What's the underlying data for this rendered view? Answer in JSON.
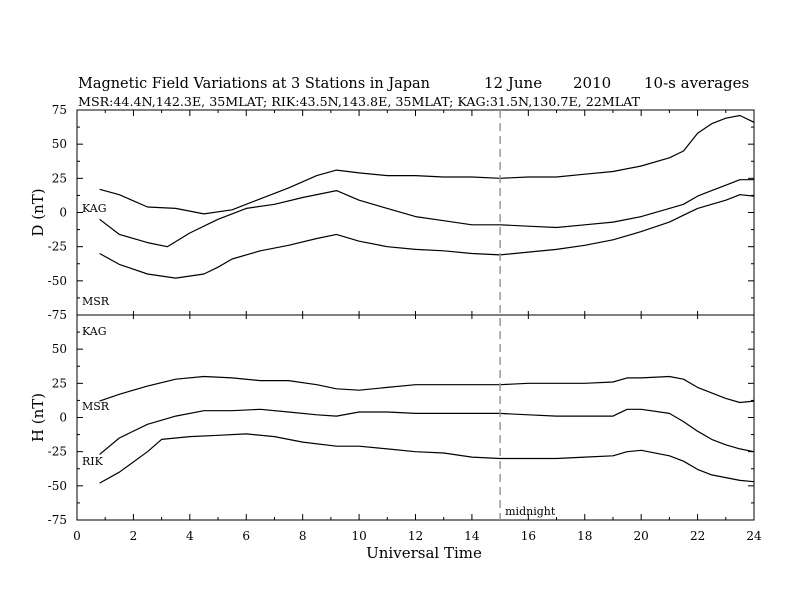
{
  "chart_data": {
    "type": "line",
    "title": "Magnetic Field Variations at 3 Stations in Japan",
    "title_date": "12 June",
    "title_year": "2010",
    "title_note": "10-s averages",
    "subtitle": "MSR:44.4N,142.3E, 35MLAT;  RIK:43.5N,143.8E, 35MLAT;  KAG:31.5N,130.7E, 22MLAT",
    "xlabel": "Universal Time",
    "xlim": [
      0,
      24
    ],
    "x_ticks": [
      "0",
      "2",
      "4",
      "6",
      "8",
      "10",
      "12",
      "14",
      "16",
      "18",
      "20",
      "22",
      "24"
    ],
    "midnight_marker": {
      "x": 15,
      "label": "midnight",
      "style": "dashed",
      "color": "#999999"
    },
    "line_color": "#000000",
    "panels": [
      {
        "ylabel": "D (nT)",
        "ylim": [
          -75,
          75
        ],
        "y_ticks": [
          "75",
          "50",
          "25",
          "0",
          "-25",
          "-50",
          "-75"
        ],
        "station_labels": [
          "KAG",
          "MSR"
        ],
        "series": [
          {
            "name": "KAG",
            "x": [
              0.8,
              1.5,
              2.5,
              3.5,
              4.5,
              5.5,
              6.5,
              7.5,
              8.5,
              9.2,
              10,
              11,
              12,
              13,
              14,
              15,
              16,
              17,
              18,
              19,
              20,
              21,
              21.5,
              22,
              22.5,
              23,
              23.5,
              24
            ],
            "y": [
              17,
              13,
              4,
              3,
              -1,
              2,
              10,
              18,
              27,
              31,
              29,
              27,
              27,
              26,
              26,
              25,
              26,
              26,
              28,
              30,
              34,
              40,
              45,
              58,
              65,
              69,
              71,
              66
            ]
          },
          {
            "name": "RIK",
            "x": [
              0.8,
              1.5,
              2.5,
              3.2,
              4,
              5,
              6,
              7,
              8,
              9.2,
              10,
              11,
              12,
              13,
              14,
              15,
              16,
              17,
              18,
              19,
              20,
              21,
              21.5,
              22,
              22.5,
              23,
              23.5,
              24
            ],
            "y": [
              -5,
              -16,
              -22,
              -25,
              -15,
              -5,
              3,
              6,
              11,
              16,
              9,
              3,
              -3,
              -6,
              -9,
              -9,
              -10,
              -11,
              -9,
              -7,
              -3,
              3,
              6,
              12,
              16,
              20,
              24,
              24
            ]
          },
          {
            "name": "MSR",
            "x": [
              0.8,
              1.5,
              2.5,
              3.5,
              4.5,
              5,
              5.5,
              6.5,
              7.5,
              8.5,
              9.2,
              10,
              11,
              12,
              13,
              14,
              15,
              16,
              17,
              18,
              19,
              20,
              21,
              21.5,
              22,
              22.5,
              23,
              23.5,
              24
            ],
            "y": [
              -30,
              -38,
              -45,
              -48,
              -45,
              -40,
              -34,
              -28,
              -24,
              -19,
              -16,
              -21,
              -25,
              -27,
              -28,
              -30,
              -31,
              -29,
              -27,
              -24,
              -20,
              -14,
              -7,
              -2,
              3,
              6,
              9,
              13,
              12
            ]
          }
        ]
      },
      {
        "ylabel": "H (nT)",
        "ylim": [
          -75,
          75
        ],
        "y_ticks": [
          "75",
          "50",
          "25",
          "0",
          "-25",
          "-50",
          "-75"
        ],
        "station_labels": [
          "KAG",
          "MSR",
          "RIK"
        ],
        "series": [
          {
            "name": "KAG",
            "x": [
              0.8,
              1.5,
              2.5,
              3.5,
              4.5,
              5.5,
              6.5,
              7.5,
              8.5,
              9.2,
              10,
              11,
              12,
              13,
              14,
              15,
              16,
              17,
              18,
              19,
              19.5,
              20,
              21,
              21.5,
              22,
              22.5,
              23,
              23.5,
              24
            ],
            "y": [
              12,
              17,
              23,
              28,
              30,
              29,
              27,
              27,
              24,
              21,
              20,
              22,
              24,
              24,
              24,
              24,
              25,
              25,
              25,
              26,
              29,
              29,
              30,
              28,
              22,
              18,
              14,
              11,
              12
            ]
          },
          {
            "name": "MSR",
            "x": [
              0.8,
              1.5,
              2.5,
              3.5,
              4.5,
              5.5,
              6.5,
              7.5,
              8.5,
              9.2,
              10,
              11,
              12,
              13,
              14,
              15,
              16,
              17,
              18,
              19,
              19.5,
              20,
              21,
              21.5,
              22,
              22.5,
              23,
              23.5,
              24
            ],
            "y": [
              -27,
              -15,
              -5,
              1,
              5,
              5,
              6,
              4,
              2,
              1,
              4,
              4,
              3,
              3,
              3,
              3,
              2,
              1,
              1,
              1,
              6,
              6,
              3,
              -3,
              -10,
              -16,
              -20,
              -23,
              -25
            ]
          },
          {
            "name": "RIK",
            "x": [
              0.8,
              1.5,
              2.5,
              3,
              4,
              5,
              6,
              7,
              8,
              9.2,
              10,
              11,
              12,
              13,
              14,
              15,
              16,
              17,
              18,
              19,
              19.5,
              20,
              21,
              21.5,
              22,
              22.5,
              23,
              23.5,
              24
            ],
            "y": [
              -48,
              -40,
              -25,
              -16,
              -14,
              -13,
              -12,
              -14,
              -18,
              -21,
              -21,
              -23,
              -25,
              -26,
              -29,
              -30,
              -30,
              -30,
              -29,
              -28,
              -25,
              -24,
              -28,
              -32,
              -38,
              -42,
              -44,
              -46,
              -47
            ]
          }
        ]
      }
    ]
  }
}
